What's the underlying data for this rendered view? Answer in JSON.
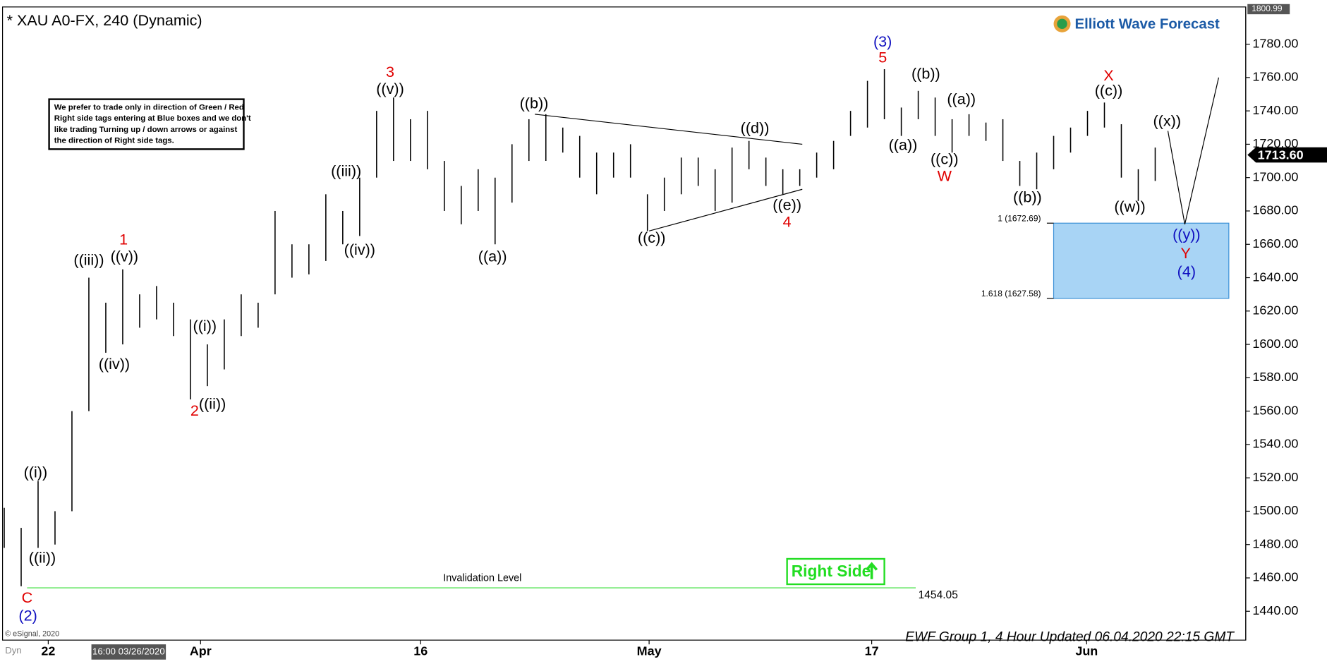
{
  "chart_data": {
    "type": "ohlc",
    "title": "* XAU A0-FX, 240 (Dynamic)",
    "logo": "Elliott Wave Forecast",
    "note": [
      "We prefer to trade only in direction of Green / Red",
      "Right side tags entering at Blue boxes and we don't",
      "like trading Turning up / down arrows or against",
      "the direction of Right side tags."
    ],
    "right_side": "Right Side",
    "footer": "EWF Group 1, 4 Hour Updated 06.04.2020 22:15 GMT",
    "copyright": "© eSignal, 2020",
    "cursor_time": "16:00 03/26/2020",
    "mode": "Dyn",
    "high": [
      1502,
      1490,
      1518,
      1500,
      1560,
      1640,
      1625,
      1645,
      1630,
      1635,
      1625,
      1615,
      1600,
      1615,
      1630,
      1625,
      1680,
      1660,
      1660,
      1690,
      1680,
      1700,
      1740,
      1748,
      1735,
      1740,
      1710,
      1695,
      1705,
      1700,
      1720,
      1735,
      1738,
      1730,
      1725,
      1715,
      1715,
      1720,
      1690,
      1700,
      1712,
      1712,
      1705,
      1718,
      1722,
      1712,
      1705,
      1705,
      1715,
      1722,
      1740,
      1758,
      1765,
      1742,
      1752,
      1748,
      1735,
      1738,
      1733,
      1735,
      1710,
      1715,
      1725,
      1730,
      1740,
      1745,
      1732,
      1705,
      1718
    ],
    "low": [
      1478,
      1455,
      1478,
      1480,
      1500,
      1560,
      1595,
      1600,
      1610,
      1615,
      1605,
      1567,
      1575,
      1585,
      1605,
      1610,
      1630,
      1640,
      1642,
      1650,
      1660,
      1665,
      1700,
      1710,
      1710,
      1705,
      1680,
      1672,
      1680,
      1660,
      1685,
      1710,
      1710,
      1715,
      1700,
      1690,
      1700,
      1700,
      1668,
      1680,
      1690,
      1695,
      1680,
      1685,
      1705,
      1695,
      1690,
      1695,
      1700,
      1705,
      1725,
      1730,
      1735,
      1725,
      1735,
      1725,
      1715,
      1725,
      1722,
      1710,
      1695,
      1693,
      1705,
      1715,
      1725,
      1730,
      1700,
      1686,
      1698
    ],
    "color": "#000000",
    "xlim": [
      0,
      73.25
    ],
    "xticks": [
      {
        "value": 2.6,
        "label": "22"
      },
      {
        "value": 11.6,
        "label": "Apr"
      },
      {
        "value": 24.6,
        "label": "16"
      },
      {
        "value": 38.1,
        "label": "May"
      },
      {
        "value": 51.25,
        "label": "17"
      },
      {
        "value": 63.95,
        "label": "Jun"
      }
    ],
    "ylim": [
      1422.7,
      1801.3
    ],
    "yticks": [
      {
        "value": 1440,
        "label": "1440.00"
      },
      {
        "value": 1460,
        "label": "1460.00"
      },
      {
        "value": 1480,
        "label": "1480.00"
      },
      {
        "value": 1500,
        "label": "1500.00"
      },
      {
        "value": 1520,
        "label": "1520.00"
      },
      {
        "value": 1540,
        "label": "1540.00"
      },
      {
        "value": 1560,
        "label": "1560.00"
      },
      {
        "value": 1580,
        "label": "1580.00"
      },
      {
        "value": 1600,
        "label": "1600.00"
      },
      {
        "value": 1620,
        "label": "1620.00"
      },
      {
        "value": 1640,
        "label": "1640.00"
      },
      {
        "value": 1660,
        "label": "1660.00"
      },
      {
        "value": 1680,
        "label": "1680.00"
      },
      {
        "value": 1700,
        "label": "1700.00"
      },
      {
        "value": 1720,
        "label": "1720.00"
      },
      {
        "value": 1740,
        "label": "1740.00"
      },
      {
        "value": 1760,
        "label": "1760.00"
      },
      {
        "value": 1780,
        "label": "1780.00"
      }
    ],
    "last_price": {
      "value": 1713.6,
      "label": "1713.60"
    },
    "top_price": {
      "value": 1800.99,
      "label": "1800.99"
    },
    "invalidation": {
      "value": 1454.05,
      "label": "1454.05",
      "text": "Invalidation Level"
    },
    "zone": {
      "top": 1672.69,
      "bottom": 1627.58,
      "top_label": "1 (1672.69)",
      "bottom_label": "1.618 (1627.58)",
      "color": "#a8d4f5"
    },
    "lines": [
      {
        "x": [
          31.35,
          47.15
        ],
        "values": [
          1738,
          1720
        ]
      },
      {
        "x": [
          38.1,
          47.15
        ],
        "values": [
          1668,
          1693
        ]
      },
      {
        "x": [
          68.75,
          69.75,
          71.75
        ],
        "values": [
          1728,
          1672,
          1760
        ]
      }
    ],
    "waves": [
      {
        "text": "(2)",
        "color": "#1010c0"
      },
      {
        "text": "C",
        "color": "#e00000"
      },
      {
        "text": "((ii))",
        "color": "#000"
      },
      {
        "text": "((i))",
        "color": "#000"
      },
      {
        "text": "((iii))",
        "color": "#000"
      },
      {
        "text": "((iv))",
        "color": "#000"
      },
      {
        "text": "1",
        "color": "#e00000"
      },
      {
        "text": "((v))",
        "color": "#000"
      },
      {
        "text": "2",
        "color": "#e00000"
      },
      {
        "text": "((i))",
        "color": "#000"
      },
      {
        "text": "((ii))",
        "color": "#000"
      },
      {
        "text": "((iii))",
        "color": "#000"
      },
      {
        "text": "((iv))",
        "color": "#000"
      },
      {
        "text": "3",
        "color": "#e00000"
      },
      {
        "text": "((v))",
        "color": "#000"
      },
      {
        "text": "((a))",
        "color": "#000"
      },
      {
        "text": "((b))",
        "color": "#000"
      },
      {
        "text": "((c))",
        "color": "#000"
      },
      {
        "text": "((d))",
        "color": "#000"
      },
      {
        "text": "((e))",
        "color": "#000"
      },
      {
        "text": "4",
        "color": "#e00000"
      },
      {
        "text": "(3)",
        "color": "#1010c0"
      },
      {
        "text": "5",
        "color": "#e00000"
      },
      {
        "text": "((a))",
        "color": "#000"
      },
      {
        "text": "((b))",
        "color": "#000"
      },
      {
        "text": "((a))",
        "color": "#000"
      },
      {
        "text": "((c))",
        "color": "#000"
      },
      {
        "text": "W",
        "color": "#e00000"
      },
      {
        "text": "((b))",
        "color": "#000"
      },
      {
        "text": "X",
        "color": "#e00000"
      },
      {
        "text": "((c))",
        "color": "#000"
      },
      {
        "text": "((w))",
        "color": "#000"
      },
      {
        "text": "((x))",
        "color": "#000"
      },
      {
        "text": "((y))",
        "color": "#1010c0"
      },
      {
        "text": "Y",
        "color": "#e00000"
      },
      {
        "text": "(4)",
        "color": "#1010c0"
      }
    ]
  }
}
